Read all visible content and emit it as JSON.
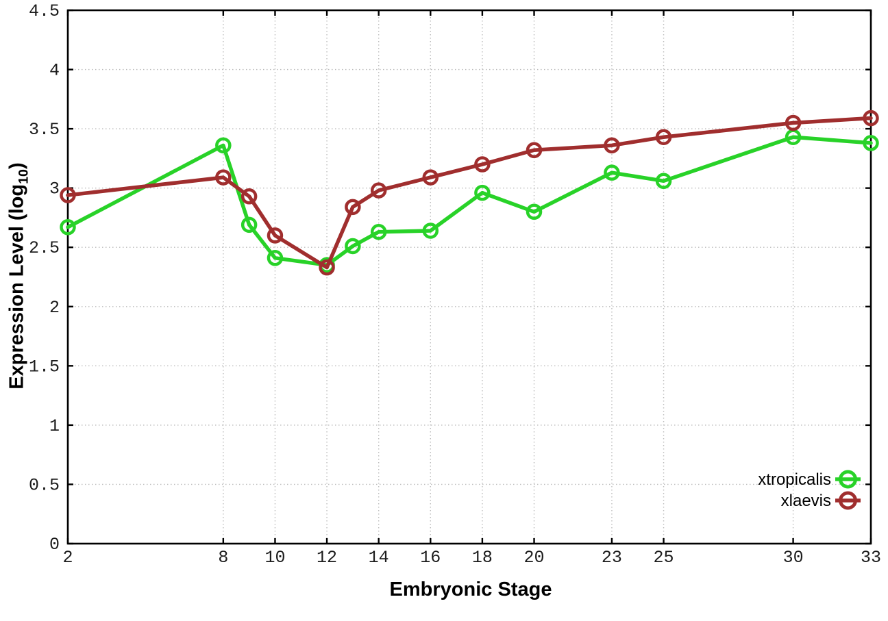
{
  "chart_data": {
    "type": "line",
    "title": "",
    "xlabel": "Embryonic Stage",
    "ylabel": "Expression Level (log10)",
    "ylabel_parts": {
      "main": "Expression Level (log",
      "sub": "10",
      "end": ")"
    },
    "x": [
      2,
      8,
      9,
      10,
      12,
      13,
      14,
      16,
      18,
      20,
      23,
      25,
      30,
      33
    ],
    "series": [
      {
        "name": "xtropicalis",
        "color": "#28d228",
        "values": [
          2.67,
          3.36,
          2.69,
          2.41,
          2.35,
          2.51,
          2.63,
          2.64,
          2.96,
          2.8,
          3.13,
          3.06,
          3.43,
          3.38
        ]
      },
      {
        "name": "xlaevis",
        "color": "#a02e2e",
        "values": [
          2.94,
          3.09,
          2.93,
          2.6,
          2.33,
          2.84,
          2.98,
          3.09,
          3.2,
          3.32,
          3.36,
          3.43,
          3.55,
          3.59
        ]
      }
    ],
    "xlim": [
      2,
      33
    ],
    "ylim": [
      0,
      4.5
    ],
    "x_ticks": [
      2,
      8,
      10,
      12,
      14,
      16,
      18,
      20,
      23,
      25,
      30,
      33
    ],
    "y_ticks": [
      0,
      0.5,
      1,
      1.5,
      2,
      2.5,
      3,
      3.5,
      4,
      4.5
    ],
    "grid": true,
    "grid_style": "dotted",
    "marker": "open-circle",
    "legend_position": "inside-bottom-right",
    "colors": {
      "background": "#ffffff",
      "border": "#000000",
      "grid": "#bcbcbc"
    }
  }
}
